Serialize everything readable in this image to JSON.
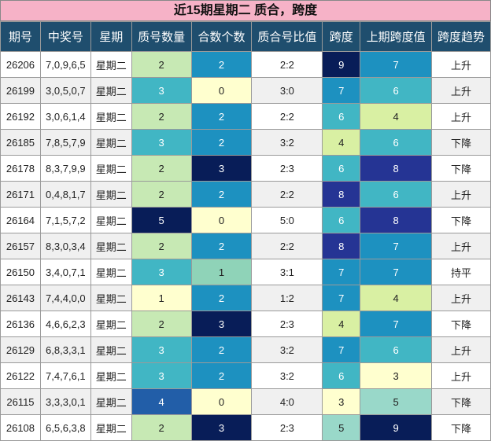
{
  "title": "近15期星期二 质合，跨度",
  "colors": {
    "header_bg": "#1f4e6e",
    "title_bg": "#f6b2c7",
    "row_alt": "#f0f0f0",
    "row_base": "#ffffff"
  },
  "columns": [
    "期号",
    "中奖号",
    "星期",
    "质号数量",
    "合数个数",
    "质合号比值",
    "跨度",
    "上期跨度值",
    "跨度趋势"
  ],
  "rows": [
    {
      "issue": "26206",
      "numbers": "7,0,9,6,5",
      "weekday": "星期二",
      "prime_count": "2",
      "composite_count": "2",
      "ratio": "2:2",
      "span": "9",
      "prev_span": "7",
      "trend": "上升"
    },
    {
      "issue": "26199",
      "numbers": "3,0,5,0,7",
      "weekday": "星期二",
      "prime_count": "3",
      "composite_count": "0",
      "ratio": "3:0",
      "span": "7",
      "prev_span": "6",
      "trend": "上升"
    },
    {
      "issue": "26192",
      "numbers": "3,0,6,1,4",
      "weekday": "星期二",
      "prime_count": "2",
      "composite_count": "2",
      "ratio": "2:2",
      "span": "6",
      "prev_span": "4",
      "trend": "上升"
    },
    {
      "issue": "26185",
      "numbers": "7,8,5,7,9",
      "weekday": "星期二",
      "prime_count": "3",
      "composite_count": "2",
      "ratio": "3:2",
      "span": "4",
      "prev_span": "6",
      "trend": "下降"
    },
    {
      "issue": "26178",
      "numbers": "8,3,7,9,9",
      "weekday": "星期二",
      "prime_count": "2",
      "composite_count": "3",
      "ratio": "2:3",
      "span": "6",
      "prev_span": "8",
      "trend": "下降"
    },
    {
      "issue": "26171",
      "numbers": "0,4,8,1,7",
      "weekday": "星期二",
      "prime_count": "2",
      "composite_count": "2",
      "ratio": "2:2",
      "span": "8",
      "prev_span": "6",
      "trend": "上升"
    },
    {
      "issue": "26164",
      "numbers": "7,1,5,7,2",
      "weekday": "星期二",
      "prime_count": "5",
      "composite_count": "0",
      "ratio": "5:0",
      "span": "6",
      "prev_span": "8",
      "trend": "下降"
    },
    {
      "issue": "26157",
      "numbers": "8,3,0,3,4",
      "weekday": "星期二",
      "prime_count": "2",
      "composite_count": "2",
      "ratio": "2:2",
      "span": "8",
      "prev_span": "7",
      "trend": "上升"
    },
    {
      "issue": "26150",
      "numbers": "3,4,0,7,1",
      "weekday": "星期二",
      "prime_count": "3",
      "composite_count": "1",
      "ratio": "3:1",
      "span": "7",
      "prev_span": "7",
      "trend": "持平"
    },
    {
      "issue": "26143",
      "numbers": "7,4,4,0,0",
      "weekday": "星期二",
      "prime_count": "1",
      "composite_count": "2",
      "ratio": "1:2",
      "span": "7",
      "prev_span": "4",
      "trend": "上升"
    },
    {
      "issue": "26136",
      "numbers": "4,6,6,2,3",
      "weekday": "星期二",
      "prime_count": "2",
      "composite_count": "3",
      "ratio": "2:3",
      "span": "4",
      "prev_span": "7",
      "trend": "下降"
    },
    {
      "issue": "26129",
      "numbers": "6,8,3,3,1",
      "weekday": "星期二",
      "prime_count": "3",
      "composite_count": "2",
      "ratio": "3:2",
      "span": "7",
      "prev_span": "6",
      "trend": "上升"
    },
    {
      "issue": "26122",
      "numbers": "7,4,7,6,1",
      "weekday": "星期二",
      "prime_count": "3",
      "composite_count": "2",
      "ratio": "3:2",
      "span": "6",
      "prev_span": "3",
      "trend": "上升"
    },
    {
      "issue": "26115",
      "numbers": "3,3,3,0,1",
      "weekday": "星期二",
      "prime_count": "4",
      "composite_count": "0",
      "ratio": "4:0",
      "span": "3",
      "prev_span": "5",
      "trend": "下降"
    },
    {
      "issue": "26108",
      "numbers": "6,5,6,3,8",
      "weekday": "星期二",
      "prime_count": "2",
      "composite_count": "3",
      "ratio": "2:3",
      "span": "5",
      "prev_span": "9",
      "trend": "下降"
    }
  ]
}
